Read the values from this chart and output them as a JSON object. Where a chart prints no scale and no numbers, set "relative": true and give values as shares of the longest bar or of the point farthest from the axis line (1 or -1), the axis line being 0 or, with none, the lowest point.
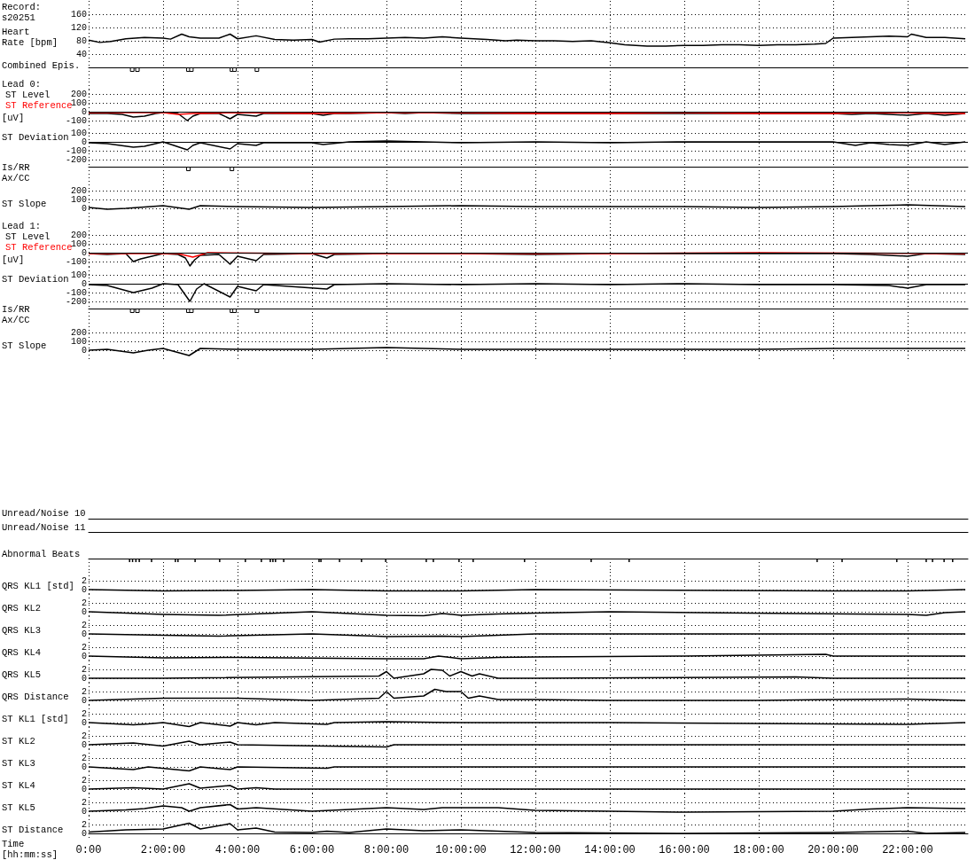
{
  "chart_data": [
    {
      "type": "line",
      "title": "Record:\ns20251",
      "ylabel": "Heart\nRate [bpm]",
      "xlim": [
        0,
        23.62
      ],
      "xticks": [
        0,
        2,
        4,
        6,
        8,
        10,
        12,
        14,
        16,
        18,
        20,
        22
      ],
      "ylim": [
        0,
        200
      ],
      "yticks": [
        40,
        80,
        120,
        160
      ],
      "grid": true,
      "tick_labels": "y",
      "series": [
        {
          "color": "#000000",
          "x": [
            0,
            0.3,
            0.6,
            1,
            1.5,
            2,
            2.2,
            2.5,
            2.7,
            3,
            3.5,
            3.8,
            4,
            4.5,
            5,
            5.5,
            6,
            6.2,
            6.6,
            7,
            7.5,
            8,
            8.5,
            9,
            9.5,
            10,
            10.7,
            11.2,
            11.5,
            12,
            12.5,
            13,
            13.5,
            14,
            14.4,
            15,
            15.5,
            16,
            16.5,
            17,
            17.5,
            18,
            18.5,
            19,
            19.5,
            19.8,
            20,
            20.5,
            21,
            21.5,
            22,
            22.1,
            22.5,
            23,
            23.55
          ],
          "values": [
            82,
            75,
            78,
            86,
            90,
            88,
            85,
            100,
            92,
            88,
            88,
            100,
            86,
            95,
            84,
            82,
            84,
            76,
            85,
            86,
            86,
            88,
            90,
            88,
            92,
            88,
            84,
            80,
            82,
            80,
            80,
            78,
            80,
            74,
            68,
            64,
            64,
            66,
            66,
            68,
            68,
            66,
            68,
            68,
            70,
            72,
            88,
            90,
            92,
            94,
            92,
            100,
            90,
            90,
            86
          ]
        }
      ]
    },
    {
      "type": "bar",
      "relative": true,
      "ylabel": "Combined Epis.",
      "xlim": [
        0,
        23.62
      ],
      "xticks": [
        0,
        2,
        4,
        6,
        8,
        10,
        12,
        14,
        16,
        18,
        20,
        22
      ],
      "grid": "x",
      "tick_labels": false,
      "color": "#000000",
      "x": [
        1.17,
        1.31,
        2.68,
        2.76,
        3.85,
        3.92,
        4.52
      ],
      "values": [
        -1,
        -1,
        -1,
        -1,
        -1,
        -1,
        -1
      ]
    },
    {
      "type": "line",
      "title": "Lead 0:",
      "ylabel": "[uV]",
      "legend": "left",
      "xlim": [
        0,
        23.62
      ],
      "xticks": [
        0,
        2,
        4,
        6,
        8,
        10,
        12,
        14,
        16,
        18,
        20,
        22
      ],
      "ylim": [
        -150,
        250
      ],
      "yticks": [
        200,
        100,
        0,
        -100
      ],
      "grid": true,
      "tick_labels": "y",
      "ref_lines": [
        {
          "axis": "y",
          "value": 0
        }
      ],
      "series": [
        {
          "name": "ST Level",
          "color": "#000000",
          "x": [
            0,
            0.5,
            0.9,
            1.2,
            1.5,
            1.8,
            2,
            2.4,
            2.65,
            2.8,
            3,
            3.5,
            3.8,
            4,
            4.5,
            4.7,
            5.5,
            6,
            6.3,
            6.6,
            7,
            8,
            8.5,
            9,
            10,
            11,
            12,
            13,
            14,
            15,
            16,
            17,
            18,
            19,
            20,
            20.5,
            21,
            21.5,
            22,
            22.5,
            23,
            23.55
          ],
          "values": [
            -20,
            -20,
            -30,
            -60,
            -50,
            -20,
            -10,
            -20,
            -100,
            -50,
            -20,
            -20,
            -80,
            -30,
            -50,
            -20,
            -20,
            -20,
            -40,
            -20,
            -20,
            -10,
            -20,
            -10,
            -20,
            -20,
            -20,
            -20,
            -20,
            -20,
            -20,
            -20,
            -20,
            -20,
            -20,
            -30,
            -20,
            -30,
            -40,
            -20,
            -40,
            -20
          ]
        },
        {
          "name": "ST Reference",
          "color": "#ff0000",
          "x": [
            0,
            1,
            2,
            2.4,
            2.8,
            4,
            6,
            8,
            10,
            12,
            14,
            16,
            18,
            20,
            21,
            23.55
          ],
          "values": [
            -10,
            -10,
            -10,
            -30,
            -20,
            -10,
            -20,
            -10,
            -10,
            -20,
            -20,
            -10,
            -20,
            -20,
            -10,
            -20
          ]
        }
      ]
    },
    {
      "type": "line",
      "ylabel": "ST Deviation",
      "xlim": [
        0,
        23.62
      ],
      "xticks": [
        0,
        2,
        4,
        6,
        8,
        10,
        12,
        14,
        16,
        18,
        20,
        22
      ],
      "ylim": [
        -280,
        190
      ],
      "yticks": [
        100,
        0,
        -100,
        -200
      ],
      "grid": true,
      "tick_labels": "y",
      "ref_lines": [
        {
          "axis": "y",
          "value": 0
        }
      ],
      "series": [
        {
          "color": "#000000",
          "x": [
            0,
            0.5,
            1.2,
            1.5,
            1.8,
            2,
            2.65,
            2.8,
            3,
            3.8,
            4,
            4.5,
            4.7,
            6,
            6.3,
            7,
            8,
            9,
            10,
            12,
            14,
            16,
            18,
            20,
            20.6,
            21,
            21.5,
            22,
            22.5,
            23,
            23.55
          ],
          "values": [
            -10,
            -20,
            -60,
            -50,
            -20,
            0,
            -90,
            -40,
            -10,
            -80,
            -20,
            -40,
            -10,
            -10,
            -30,
            0,
            10,
            0,
            -10,
            0,
            -10,
            0,
            0,
            0,
            -40,
            -10,
            -30,
            -40,
            0,
            -30,
            0
          ]
        }
      ]
    },
    {
      "type": "bar",
      "relative": true,
      "ylabel": "Is/RR\nAx/CC",
      "xlim": [
        0,
        23.62
      ],
      "xticks": [
        0,
        2,
        4,
        6,
        8,
        10,
        12,
        14,
        16,
        18,
        20,
        22
      ],
      "grid": "x",
      "tick_labels": false,
      "color": "#000000",
      "x": [
        2.68,
        3.85
      ],
      "values": [
        -1,
        -1
      ]
    },
    {
      "type": "line",
      "ylabel": "ST Slope",
      "xlim": [
        0,
        23.62
      ],
      "xticks": [
        0,
        2,
        4,
        6,
        8,
        10,
        12,
        14,
        16,
        18,
        20,
        22
      ],
      "ylim": [
        -130,
        350
      ],
      "yticks": [
        200,
        100,
        0
      ],
      "grid": true,
      "tick_labels": "y",
      "series": [
        {
          "color": "#000000",
          "x": [
            0,
            0.5,
            1,
            2,
            2.7,
            3,
            4,
            6,
            8,
            10,
            12,
            14,
            16,
            18,
            20,
            21,
            22,
            23.55
          ],
          "values": [
            10,
            -10,
            0,
            30,
            -10,
            30,
            20,
            10,
            20,
            30,
            20,
            20,
            20,
            10,
            20,
            30,
            40,
            20
          ]
        }
      ]
    },
    {
      "type": "line",
      "title": "Lead 1:",
      "ylabel": "[uV]",
      "legend": "left",
      "xlim": [
        0,
        23.62
      ],
      "xticks": [
        0,
        2,
        4,
        6,
        8,
        10,
        12,
        14,
        16,
        18,
        20,
        22
      ],
      "ylim": [
        -160,
        370
      ],
      "yticks": [
        200,
        100,
        0,
        -100
      ],
      "grid": true,
      "tick_labels": "y",
      "ref_lines": [
        {
          "axis": "y",
          "value": 0
        }
      ],
      "series": [
        {
          "name": "ST Level",
          "color": "#000000",
          "x": [
            0,
            0.5,
            1,
            1.2,
            1.4,
            1.7,
            2,
            2.4,
            2.6,
            2.72,
            2.85,
            3,
            3.5,
            3.8,
            4,
            4.5,
            4.7,
            6,
            6.4,
            6.6,
            8,
            10,
            12,
            14,
            16,
            18,
            20,
            21,
            22,
            22.5,
            23.55
          ],
          "values": [
            -10,
            -20,
            -10,
            -100,
            -70,
            -40,
            -10,
            -20,
            -60,
            -150,
            -80,
            -30,
            -20,
            -130,
            -40,
            -90,
            -20,
            -10,
            -60,
            -20,
            -10,
            -10,
            -20,
            -10,
            -10,
            -10,
            -10,
            -20,
            -40,
            -10,
            -20
          ]
        },
        {
          "name": "ST Reference",
          "color": "#ff0000",
          "x": [
            0,
            1.5,
            2.4,
            2.8,
            3.2,
            6,
            10,
            14,
            18,
            23.55
          ],
          "values": [
            -10,
            -10,
            -10,
            -50,
            0,
            -10,
            -10,
            -10,
            0,
            -10
          ]
        }
      ]
    },
    {
      "type": "line",
      "ylabel": "ST Deviation",
      "xlim": [
        0,
        23.62
      ],
      "xticks": [
        0,
        2,
        4,
        6,
        8,
        10,
        12,
        14,
        16,
        18,
        20,
        22
      ],
      "ylim": [
        -280,
        190
      ],
      "yticks": [
        100,
        0,
        -100,
        -200
      ],
      "grid": true,
      "tick_labels": "y",
      "ref_lines": [
        {
          "axis": "y",
          "value": 0
        }
      ],
      "series": [
        {
          "color": "#000000",
          "x": [
            0,
            0.5,
            1.2,
            1.4,
            1.7,
            2,
            2.4,
            2.72,
            2.9,
            3.1,
            3.8,
            4,
            4.5,
            4.7,
            6.4,
            6.6,
            8,
            10,
            12,
            14,
            16,
            18,
            20,
            21.5,
            22,
            22.5,
            23.55
          ],
          "values": [
            -10,
            -20,
            -100,
            -80,
            -50,
            0,
            -10,
            -200,
            -60,
            0,
            -150,
            -30,
            -80,
            -10,
            -60,
            -10,
            0,
            -10,
            0,
            -10,
            0,
            -10,
            -10,
            -20,
            -50,
            -10,
            -10
          ]
        }
      ]
    },
    {
      "type": "bar",
      "relative": true,
      "ylabel": "Is/RR\nAx/CC",
      "xlim": [
        0,
        23.62
      ],
      "xticks": [
        0,
        2,
        4,
        6,
        8,
        10,
        12,
        14,
        16,
        18,
        20,
        22
      ],
      "grid": "x",
      "tick_labels": false,
      "color": "#000000",
      "x": [
        1.17,
        1.31,
        2.68,
        2.76,
        3.85,
        3.92,
        4.52
      ],
      "values": [
        -1,
        -1,
        -1,
        -1,
        -1,
        -1,
        -1
      ]
    },
    {
      "type": "line",
      "ylabel": "ST Slope",
      "xlim": [
        0,
        23.62
      ],
      "xticks": [
        0,
        2,
        4,
        6,
        8,
        10,
        12,
        14,
        16,
        18,
        20,
        22
      ],
      "ylim": [
        -130,
        350
      ],
      "yticks": [
        200,
        100,
        0
      ],
      "grid": true,
      "tick_labels": "y",
      "series": [
        {
          "color": "#000000",
          "x": [
            0,
            0.5,
            1.2,
            1.6,
            2,
            2.7,
            3,
            4,
            6,
            8,
            10,
            12,
            14,
            16,
            18,
            20,
            22,
            23.55
          ],
          "values": [
            0,
            10,
            -30,
            0,
            20,
            -60,
            20,
            10,
            10,
            30,
            10,
            10,
            10,
            10,
            10,
            20,
            20,
            20
          ]
        }
      ]
    },
    {
      "type": "other",
      "ylabel": "Unread/Noise 10"
    },
    {
      "type": "other",
      "ylabel": "Unread/Noise 11"
    },
    {
      "type": "bar",
      "relative": true,
      "ylabel": "Abnormal Beats",
      "xlim": [
        0,
        23.62
      ],
      "xticks": [
        0,
        2,
        4,
        6,
        8,
        10,
        12,
        14,
        16,
        18,
        20,
        22
      ],
      "grid": "x",
      "tick_labels": false,
      "color": "#000000",
      "x": [
        1.1,
        1.18,
        1.27,
        1.36,
        1.69,
        2.33,
        2.4,
        2.86,
        3.52,
        4.21,
        4.64,
        4.88,
        4.95,
        5.02,
        5.24,
        6.19,
        6.24,
        6.74,
        7.33,
        7.98,
        9.07,
        9.26,
        9.95,
        10.33,
        11.71,
        13.5,
        14.52,
        19.57,
        20.24,
        21.71,
        22.5,
        22.67,
        22.98,
        23.21
      ],
      "values": [
        -1,
        -1,
        -1,
        -1,
        -1,
        -1,
        -1,
        -1,
        -1,
        -1,
        -1,
        -1,
        -1,
        -1,
        -1,
        -1,
        -1,
        -1,
        -1,
        -1,
        -1,
        -1,
        -1,
        -1,
        -1,
        -1,
        -1,
        -1,
        -1,
        -1,
        -1,
        -1,
        -1,
        -1
      ]
    },
    {
      "type": "line",
      "ylabel": "QRS KL1 [std]",
      "xlim": [
        0,
        23.62
      ],
      "xticks": [
        0,
        2,
        4,
        6,
        8,
        10,
        12,
        14,
        16,
        18,
        20,
        22
      ],
      "ylim": [
        -1,
        4
      ],
      "yticks": [
        0,
        2
      ],
      "grid": true,
      "tick_labels": "y",
      "series": [
        {
          "color": "#000000",
          "x": [
            0,
            2,
            4,
            6,
            8,
            9,
            10,
            12,
            20,
            22,
            23.55
          ],
          "values": [
            0,
            -0.3,
            -0.2,
            0,
            -0.3,
            -0.3,
            -0.3,
            0,
            -0.3,
            -0.3,
            0
          ]
        }
      ]
    },
    {
      "type": "line",
      "ylabel": "QRS KL2",
      "xlim": [
        0,
        23.62
      ],
      "xticks": [
        0,
        2,
        4,
        6,
        8,
        10,
        12,
        14,
        16,
        18,
        20,
        22
      ],
      "ylim": [
        -1,
        4
      ],
      "yticks": [
        0,
        2
      ],
      "grid": true,
      "tick_labels": "y",
      "series": [
        {
          "color": "#000000",
          "x": [
            0,
            2,
            3.5,
            6,
            8,
            9,
            9.5,
            10,
            11,
            12,
            14,
            19,
            22,
            22.5,
            23,
            23.55
          ],
          "values": [
            0,
            -0.6,
            -0.8,
            0,
            -0.8,
            -0.9,
            -0.4,
            -0.8,
            -0.5,
            -0.3,
            0,
            -0.4,
            -0.6,
            -0.8,
            -0.2,
            0
          ]
        }
      ]
    },
    {
      "type": "line",
      "ylabel": "QRS KL3",
      "xlim": [
        0,
        23.62
      ],
      "xticks": [
        0,
        2,
        4,
        6,
        8,
        10,
        12,
        14,
        16,
        18,
        20,
        22
      ],
      "ylim": [
        -1,
        4
      ],
      "yticks": [
        0,
        2
      ],
      "grid": true,
      "tick_labels": "y",
      "series": [
        {
          "color": "#000000",
          "x": [
            0,
            2,
            3.5,
            6,
            7.7,
            8,
            9.5,
            10,
            11,
            12,
            23.55
          ],
          "values": [
            0,
            -0.3,
            -0.5,
            0,
            -0.5,
            -0.6,
            -0.5,
            -0.6,
            -0.3,
            0,
            0
          ]
        }
      ]
    },
    {
      "type": "line",
      "ylabel": "QRS KL4",
      "xlim": [
        0,
        23.62
      ],
      "xticks": [
        0,
        2,
        4,
        6,
        8,
        10,
        12,
        14,
        16,
        18,
        20,
        22
      ],
      "ylim": [
        -1,
        4
      ],
      "yticks": [
        0,
        2
      ],
      "grid": true,
      "tick_labels": "y",
      "series": [
        {
          "color": "#000000",
          "x": [
            0,
            2,
            4,
            8,
            9,
            9.4,
            10,
            11,
            12,
            16,
            19.8,
            20,
            23.55
          ],
          "values": [
            0,
            -0.4,
            -0.3,
            -0.6,
            -0.6,
            0,
            -0.6,
            -0.3,
            -0.2,
            0,
            0.4,
            0,
            0
          ]
        }
      ]
    },
    {
      "type": "line",
      "ylabel": "QRS KL5",
      "xlim": [
        0,
        23.62
      ],
      "xticks": [
        0,
        2,
        4,
        6,
        8,
        10,
        12,
        14,
        16,
        18,
        20,
        22
      ],
      "ylim": [
        -1,
        4
      ],
      "yticks": [
        0,
        2
      ],
      "grid": true,
      "tick_labels": "y",
      "series": [
        {
          "color": "#000000",
          "x": [
            0,
            2,
            7.8,
            8,
            8.2,
            9,
            9.2,
            9.5,
            9.7,
            10,
            10.3,
            10.5,
            11,
            12,
            19,
            20,
            23.55
          ],
          "values": [
            0,
            0,
            0.5,
            1.5,
            0,
            1,
            2,
            1.8,
            0.5,
            1.5,
            0.5,
            1,
            0,
            0,
            0.3,
            0,
            0
          ]
        }
      ]
    },
    {
      "type": "line",
      "ylabel": "QRS Distance",
      "xlim": [
        0,
        23.62
      ],
      "xticks": [
        0,
        2,
        4,
        6,
        8,
        10,
        12,
        14,
        16,
        18,
        20,
        22
      ],
      "ylim": [
        -1,
        4
      ],
      "yticks": [
        0,
        2
      ],
      "grid": true,
      "tick_labels": "y",
      "series": [
        {
          "color": "#000000",
          "x": [
            0,
            2,
            4,
            6,
            7.8,
            8,
            8.2,
            9,
            9.3,
            9.6,
            10,
            10.2,
            10.5,
            11,
            12,
            14,
            18,
            20,
            22,
            23.55
          ],
          "values": [
            0,
            0.5,
            0.5,
            0,
            0.5,
            2,
            0.5,
            1,
            2.5,
            2,
            2,
            0.5,
            1,
            0.2,
            0.2,
            0,
            0,
            0.2,
            0.3,
            0
          ]
        }
      ]
    },
    {
      "type": "line",
      "ylabel": "ST KL1 [std]",
      "xlim": [
        0,
        23.62
      ],
      "xticks": [
        0,
        2,
        4,
        6,
        8,
        10,
        12,
        14,
        16,
        18,
        20,
        22
      ],
      "ylim": [
        -1,
        4
      ],
      "yticks": [
        0,
        2
      ],
      "grid": true,
      "tick_labels": "y",
      "series": [
        {
          "color": "#000000",
          "x": [
            0,
            1.2,
            1.6,
            2,
            2.7,
            3,
            3.8,
            4,
            4.5,
            5,
            6.4,
            6.6,
            8,
            10,
            14,
            22,
            23.55
          ],
          "values": [
            0,
            -0.5,
            -0.3,
            0,
            -0.9,
            0,
            -0.8,
            0,
            -0.5,
            0,
            -0.4,
            0,
            0.2,
            0,
            0,
            -0.4,
            0
          ]
        }
      ]
    },
    {
      "type": "line",
      "ylabel": "ST KL2",
      "xlim": [
        0,
        23.62
      ],
      "xticks": [
        0,
        2,
        4,
        6,
        8,
        10,
        12,
        14,
        16,
        18,
        20,
        22
      ],
      "ylim": [
        -1,
        4
      ],
      "yticks": [
        0,
        2
      ],
      "grid": true,
      "tick_labels": "y",
      "series": [
        {
          "color": "#000000",
          "x": [
            0,
            1.2,
            2,
            2.7,
            3,
            3.8,
            4,
            8,
            8.2,
            14,
            23.55
          ],
          "values": [
            0,
            0.4,
            -0.3,
            0.8,
            0,
            0.6,
            0,
            -0.5,
            0,
            0,
            0
          ]
        }
      ]
    },
    {
      "type": "line",
      "ylabel": "ST KL3",
      "xlim": [
        0,
        23.62
      ],
      "xticks": [
        0,
        2,
        4,
        6,
        8,
        10,
        12,
        14,
        16,
        18,
        20,
        22
      ],
      "ylim": [
        -1,
        4
      ],
      "yticks": [
        0,
        2
      ],
      "grid": true,
      "tick_labels": "y",
      "series": [
        {
          "color": "#000000",
          "x": [
            0,
            1.2,
            1.6,
            2.7,
            3,
            3.8,
            4,
            6.4,
            6.6,
            14,
            23.55
          ],
          "values": [
            0,
            -0.6,
            0,
            -0.9,
            0,
            -0.6,
            0,
            -0.3,
            0,
            0,
            0
          ]
        }
      ]
    },
    {
      "type": "line",
      "ylabel": "ST KL4",
      "xlim": [
        0,
        23.62
      ],
      "xticks": [
        0,
        2,
        4,
        6,
        8,
        10,
        12,
        14,
        16,
        18,
        20,
        22
      ],
      "ylim": [
        -1,
        4
      ],
      "yticks": [
        0,
        2
      ],
      "grid": true,
      "tick_labels": "y",
      "series": [
        {
          "color": "#000000",
          "x": [
            0,
            1.2,
            2,
            2.7,
            3,
            3.8,
            4,
            4.5,
            5,
            14,
            23.55
          ],
          "values": [
            0,
            0.3,
            0,
            1.2,
            0.2,
            0.8,
            0,
            0.3,
            0,
            0,
            0
          ]
        }
      ]
    },
    {
      "type": "line",
      "ylabel": "ST KL5",
      "xlim": [
        0,
        23.62
      ],
      "xticks": [
        0,
        2,
        4,
        6,
        8,
        10,
        12,
        14,
        16,
        18,
        20,
        22
      ],
      "ylim": [
        -1,
        4
      ],
      "yticks": [
        0,
        2
      ],
      "grid": true,
      "tick_labels": "y",
      "series": [
        {
          "color": "#000000",
          "x": [
            0,
            1,
            1.5,
            2,
            2.5,
            2.7,
            3,
            3.8,
            4,
            4.5,
            6,
            8,
            9,
            9.5,
            10,
            11,
            12,
            14,
            16,
            20,
            21,
            22,
            23.55
          ],
          "values": [
            0,
            0.3,
            0.6,
            1.2,
            0.8,
            0,
            0.8,
            1.5,
            0.5,
            0.8,
            0,
            0.8,
            0.4,
            0.8,
            0.8,
            0.8,
            0.2,
            0,
            -0.2,
            0,
            0.5,
            0.8,
            0.6
          ]
        }
      ]
    },
    {
      "type": "line",
      "ylabel": "ST Distance",
      "xlabel": "Time\n[hh:mm:ss]",
      "xlim": [
        0,
        23.62
      ],
      "xticks": [
        {
          "value": 0,
          "label": "0:00"
        },
        {
          "value": 2,
          "label": "2:00:00"
        },
        {
          "value": 4,
          "label": "4:00:00"
        },
        {
          "value": 6,
          "label": "6:00:00"
        },
        {
          "value": 8,
          "label": "8:00:00"
        },
        {
          "value": 10,
          "label": "10:00:00"
        },
        {
          "value": 12,
          "label": "12:00:00"
        },
        {
          "value": 14,
          "label": "14:00:00"
        },
        {
          "value": 16,
          "label": "16:00:00"
        },
        {
          "value": 18,
          "label": "18:00:00"
        },
        {
          "value": 20,
          "label": "20:00:00"
        },
        {
          "value": 22,
          "label": "22:00:00"
        }
      ],
      "ylim": [
        -1,
        4
      ],
      "yticks": [
        0,
        2
      ],
      "grid": true,
      "series": [
        {
          "color": "#000000",
          "x": [
            0,
            1,
            2,
            2.7,
            3,
            3.8,
            4,
            4.5,
            5,
            6,
            6.4,
            7,
            8,
            9,
            10,
            11,
            12,
            16,
            20,
            22,
            22.5,
            23.55
          ],
          "values": [
            0.3,
            0.8,
            1,
            2.3,
            1,
            2.2,
            0.8,
            1.2,
            0.3,
            0.2,
            0.5,
            0.2,
            1,
            0.6,
            0.8,
            0.5,
            0.2,
            0,
            0.2,
            0.5,
            0,
            0.2
          ]
        }
      ]
    }
  ]
}
